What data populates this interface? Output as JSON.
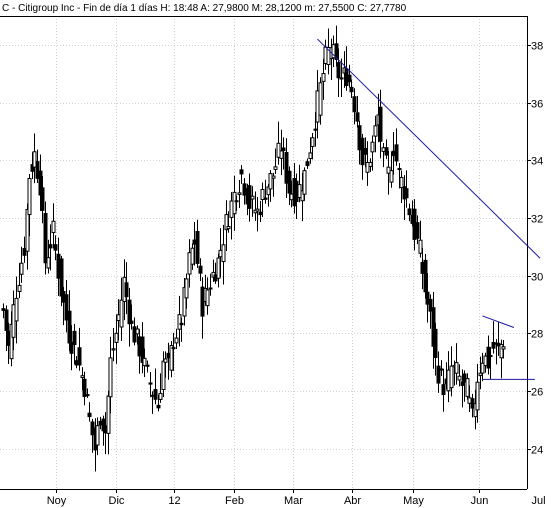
{
  "chart_data": {
    "type": "candlestick",
    "title": "C - Citigroup Inc - Fin de día 1 días H: 18:48 A: 27,9800 M: 28,1200 m: 27,5500 C: 27,7780",
    "x_ticks": [
      "Noy",
      "Dic",
      "12",
      "Feb",
      "Mar",
      "Abr",
      "May",
      "Jun",
      "Jul"
    ],
    "y_ticks": [
      "24",
      "26",
      "28",
      "30",
      "32",
      "34",
      "36",
      "38"
    ],
    "ylim": [
      22.6,
      39.0
    ],
    "grid": true,
    "series_color": "#000000",
    "trendline_color": "#1a1aa0",
    "anchors": [
      [
        0,
        28.8
      ],
      [
        2,
        27.5
      ],
      [
        5,
        29.5
      ],
      [
        8,
        31.0
      ],
      [
        10,
        33.5
      ],
      [
        12,
        34.2
      ],
      [
        14,
        33.2
      ],
      [
        16,
        30.5
      ],
      [
        19,
        31.5
      ],
      [
        22,
        29.5
      ],
      [
        25,
        28.0
      ],
      [
        28,
        27.2
      ],
      [
        31,
        26.2
      ],
      [
        33,
        25.0
      ],
      [
        35,
        24.0
      ],
      [
        37,
        25.2
      ],
      [
        39,
        24.6
      ],
      [
        41,
        27.0
      ],
      [
        43,
        28.0
      ],
      [
        46,
        29.8
      ],
      [
        49,
        28.2
      ],
      [
        52,
        27.5
      ],
      [
        55,
        26.5
      ],
      [
        57,
        26.0
      ],
      [
        59,
        25.5
      ],
      [
        61,
        27.0
      ],
      [
        63,
        26.8
      ],
      [
        65,
        27.8
      ],
      [
        68,
        28.5
      ],
      [
        71,
        30.5
      ],
      [
        73,
        31.2
      ],
      [
        76,
        29.0
      ],
      [
        79,
        29.8
      ],
      [
        82,
        30.5
      ],
      [
        85,
        31.8
      ],
      [
        88,
        32.8
      ],
      [
        91,
        33.5
      ],
      [
        94,
        32.5
      ],
      [
        97,
        32.2
      ],
      [
        100,
        33.0
      ],
      [
        103,
        33.5
      ],
      [
        106,
        34.5
      ],
      [
        109,
        33.0
      ],
      [
        112,
        32.8
      ],
      [
        115,
        33.5
      ],
      [
        118,
        35.0
      ],
      [
        121,
        36.5
      ],
      [
        123,
        37.5
      ],
      [
        125,
        38.0
      ],
      [
        127,
        37.2
      ],
      [
        129,
        36.8
      ],
      [
        131,
        37.0
      ],
      [
        133,
        36.5
      ],
      [
        135,
        35.5
      ],
      [
        137,
        34.0
      ],
      [
        139,
        33.8
      ],
      [
        141,
        34.5
      ],
      [
        143,
        35.5
      ],
      [
        145,
        34.0
      ],
      [
        147,
        33.5
      ],
      [
        149,
        34.5
      ],
      [
        151,
        33.5
      ],
      [
        153,
        33.0
      ],
      [
        155,
        32.3
      ],
      [
        157,
        31.5
      ],
      [
        159,
        30.8
      ],
      [
        161,
        29.5
      ],
      [
        163,
        28.5
      ],
      [
        165,
        27.0
      ],
      [
        167,
        26.4
      ],
      [
        169,
        26.0
      ],
      [
        171,
        26.8
      ],
      [
        173,
        26.6
      ],
      [
        175,
        26.2
      ],
      [
        177,
        26.0
      ],
      [
        179,
        25.0
      ],
      [
        181,
        26.5
      ],
      [
        183,
        27.2
      ],
      [
        185,
        27.0
      ],
      [
        187,
        27.5
      ],
      [
        189,
        27.4
      ],
      [
        191,
        27.78
      ]
    ],
    "trendlines": [
      {
        "from": [
          120,
          38.2
        ],
        "to": [
          205,
          30.6
        ]
      },
      {
        "from": [
          183,
          28.6
        ],
        "to": [
          195,
          28.2
        ]
      },
      {
        "from": [
          183,
          26.4
        ],
        "to": [
          203,
          26.4
        ]
      }
    ]
  }
}
